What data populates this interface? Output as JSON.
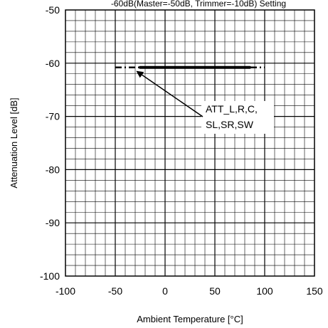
{
  "chart_data": {
    "type": "line",
    "title": "-60dB(Master=-50dB, Trimmer=-10dB) Setting",
    "xlabel": "Ambient Temperature [°C]",
    "ylabel": "Attenuation Level [dB]",
    "xlim": [
      -100,
      150
    ],
    "ylim": [
      -100,
      -50
    ],
    "x_ticks": [
      -100,
      -50,
      0,
      50,
      100,
      150
    ],
    "y_ticks": [
      -50,
      -60,
      -70,
      -80,
      -90,
      -100
    ],
    "x_tick_labels": [
      "-100",
      "-50",
      "0",
      "50",
      "100",
      "150"
    ],
    "y_tick_labels": [
      "-50",
      "-60",
      "-70",
      "-80",
      "-90",
      "-100"
    ],
    "grid": true,
    "series": [
      {
        "style": "dash-dot",
        "x": [
          -50,
          -25,
          0,
          25,
          50,
          75,
          100
        ],
        "y": [
          -60.8,
          -60.8,
          -60.8,
          -60.8,
          -60.8,
          -60.8,
          -60.8
        ]
      },
      {
        "style": "solid-thick",
        "x": [
          -25,
          0,
          25,
          50,
          85
        ],
        "y": [
          -60.8,
          -60.8,
          -60.8,
          -60.8,
          -60.8
        ]
      }
    ],
    "annotations": [
      {
        "lines": [
          "ATT_L,R,C,",
          "SL,SR,SW"
        ],
        "arrow_to": [
          -30,
          -60.8
        ]
      }
    ]
  }
}
